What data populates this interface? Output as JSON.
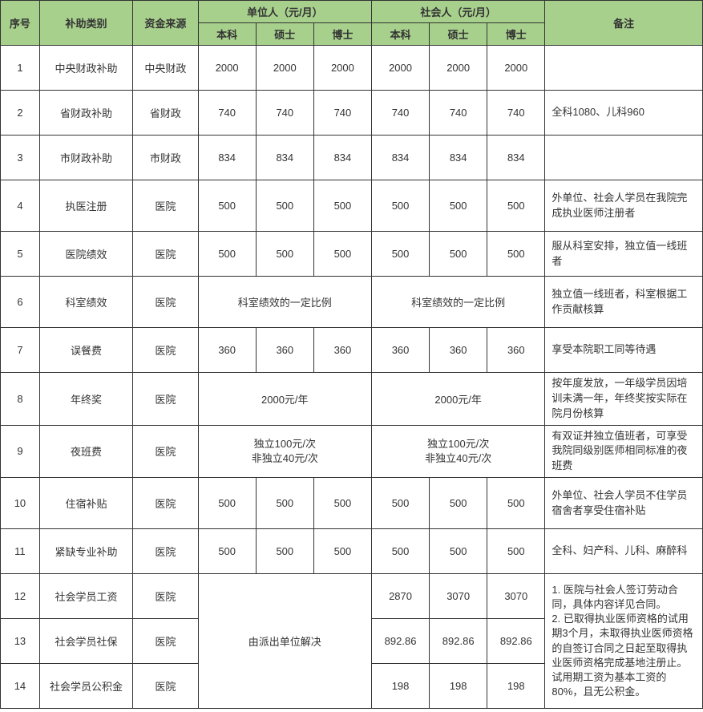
{
  "header": {
    "seq": "序号",
    "category": "补助类别",
    "source": "资金来源",
    "unit_group": "单位人（元/月）",
    "society_group": "社会人（元/月）",
    "bachelor": "本科",
    "master": "硕士",
    "doctor": "博士",
    "note": "备注"
  },
  "rows": [
    {
      "seq": "1",
      "cat": "中央财政补助",
      "src": "中央财政",
      "u_b": "2000",
      "u_m": "2000",
      "u_d": "2000",
      "s_b": "2000",
      "s_m": "2000",
      "s_d": "2000",
      "note": ""
    },
    {
      "seq": "2",
      "cat": "省财政补助",
      "src": "省财政",
      "u_b": "740",
      "u_m": "740",
      "u_d": "740",
      "s_b": "740",
      "s_m": "740",
      "s_d": "740",
      "note": "全科1080、儿科960"
    },
    {
      "seq": "3",
      "cat": "市财政补助",
      "src": "市财政",
      "u_b": "834",
      "u_m": "834",
      "u_d": "834",
      "s_b": "834",
      "s_m": "834",
      "s_d": "834",
      "note": ""
    },
    {
      "seq": "4",
      "cat": "执医注册",
      "src": "医院",
      "u_b": "500",
      "u_m": "500",
      "u_d": "500",
      "s_b": "500",
      "s_m": "500",
      "s_d": "500",
      "note": "外单位、社会人学员在我院完成执业医师注册者"
    },
    {
      "seq": "5",
      "cat": "医院绩效",
      "src": "医院",
      "u_b": "500",
      "u_m": "500",
      "u_d": "500",
      "s_b": "500",
      "s_m": "500",
      "s_d": "500",
      "note": "服从科室安排，独立值一线班者"
    },
    {
      "seq": "6",
      "cat": "科室绩效",
      "src": "医院",
      "u_span": "科室绩效的一定比例",
      "s_span": "科室绩效的一定比例",
      "note": "独立值一线班者，科室根据工作贡献核算"
    },
    {
      "seq": "7",
      "cat": "误餐费",
      "src": "医院",
      "u_b": "360",
      "u_m": "360",
      "u_d": "360",
      "s_b": "360",
      "s_m": "360",
      "s_d": "360",
      "note": "享受本院职工同等待遇"
    },
    {
      "seq": "8",
      "cat": "年终奖",
      "src": "医院",
      "u_span": "2000元/年",
      "s_span": "2000元/年",
      "note": "按年度发放，一年级学员因培训未满一年，年终奖按实际在院月份核算"
    },
    {
      "seq": "9",
      "cat": "夜班费",
      "src": "医院",
      "u_span": "独立100元/次\n非独立40元/次",
      "s_span": "独立100元/次\n非独立40元/次",
      "note": "有双证并独立值班者，可享受我院同级别医师相同标准的夜班费"
    },
    {
      "seq": "10",
      "cat": "住宿补贴",
      "src": "医院",
      "u_b": "500",
      "u_m": "500",
      "u_d": "500",
      "s_b": "500",
      "s_m": "500",
      "s_d": "500",
      "note": "外单位、社会人学员不住学员宿舍者享受住宿补贴"
    },
    {
      "seq": "11",
      "cat": "紧缺专业补助",
      "src": "医院",
      "u_b": "500",
      "u_m": "500",
      "u_d": "500",
      "s_b": "500",
      "s_m": "500",
      "s_d": "500",
      "note": "全科、妇产科、儿科、麻醉科"
    },
    {
      "seq": "12",
      "cat": "社会学员工资",
      "src": "医院",
      "u_span_3row": "由派出单位解决",
      "s_b": "2870",
      "s_m": "3070",
      "s_d": "3070",
      "note_3row": "1. 医院与社会人签订劳动合同，具体内容详见合同。\n2. 已取得执业医师资格的试用期3个月，未取得执业医师资格的自签订合同之日起至取得执业医师资格完成基地注册止。试用期工资为基本工资的80%，且无公积金。"
    },
    {
      "seq": "13",
      "cat": "社会学员社保",
      "src": "医院",
      "s_b": "892.86",
      "s_m": "892.86",
      "s_d": "892.86"
    },
    {
      "seq": "14",
      "cat": "社会学员公积金",
      "src": "医院",
      "s_b": "198",
      "s_m": "198",
      "s_d": "198"
    }
  ],
  "style": {
    "header_bg": "#a8d08d",
    "border_color": "#333333",
    "font_size": 13
  }
}
